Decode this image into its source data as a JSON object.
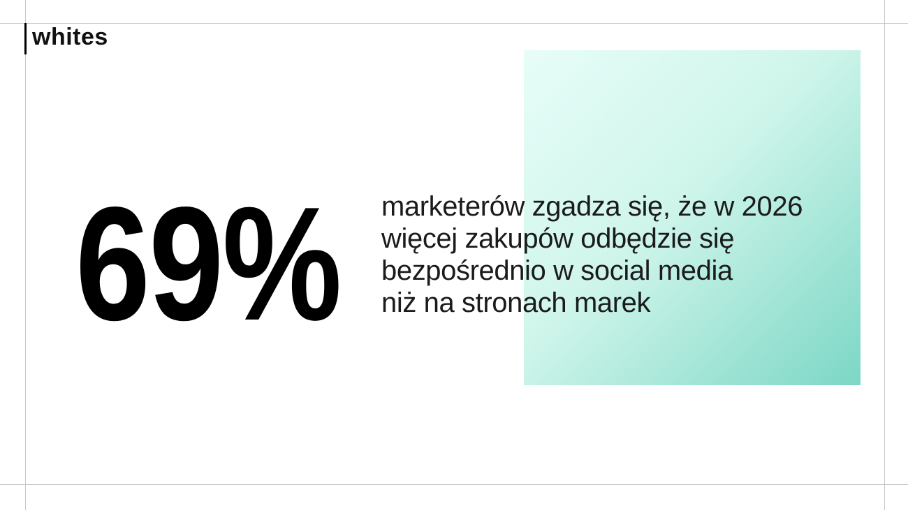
{
  "slide": {
    "background_color": "#ffffff",
    "guide_line_color": "#c9c9c9",
    "text_color": "#1b1b1b"
  },
  "brand": {
    "logo_text": "whites",
    "logo_bar_color": "#000000"
  },
  "stat": {
    "value": "69%",
    "color": "#000000"
  },
  "statement": {
    "lines": [
      "marketerów zgadza się, że w 2026",
      "więcej zakupów odbędzie się",
      "bezpośrednio w social media",
      "niż na stronach marek"
    ]
  },
  "decoration": {
    "gradient_from": "#e7fdf8",
    "gradient_mid": "#cff5eb",
    "gradient_to": "#7cd7c5",
    "gradient_angle": "135deg"
  }
}
